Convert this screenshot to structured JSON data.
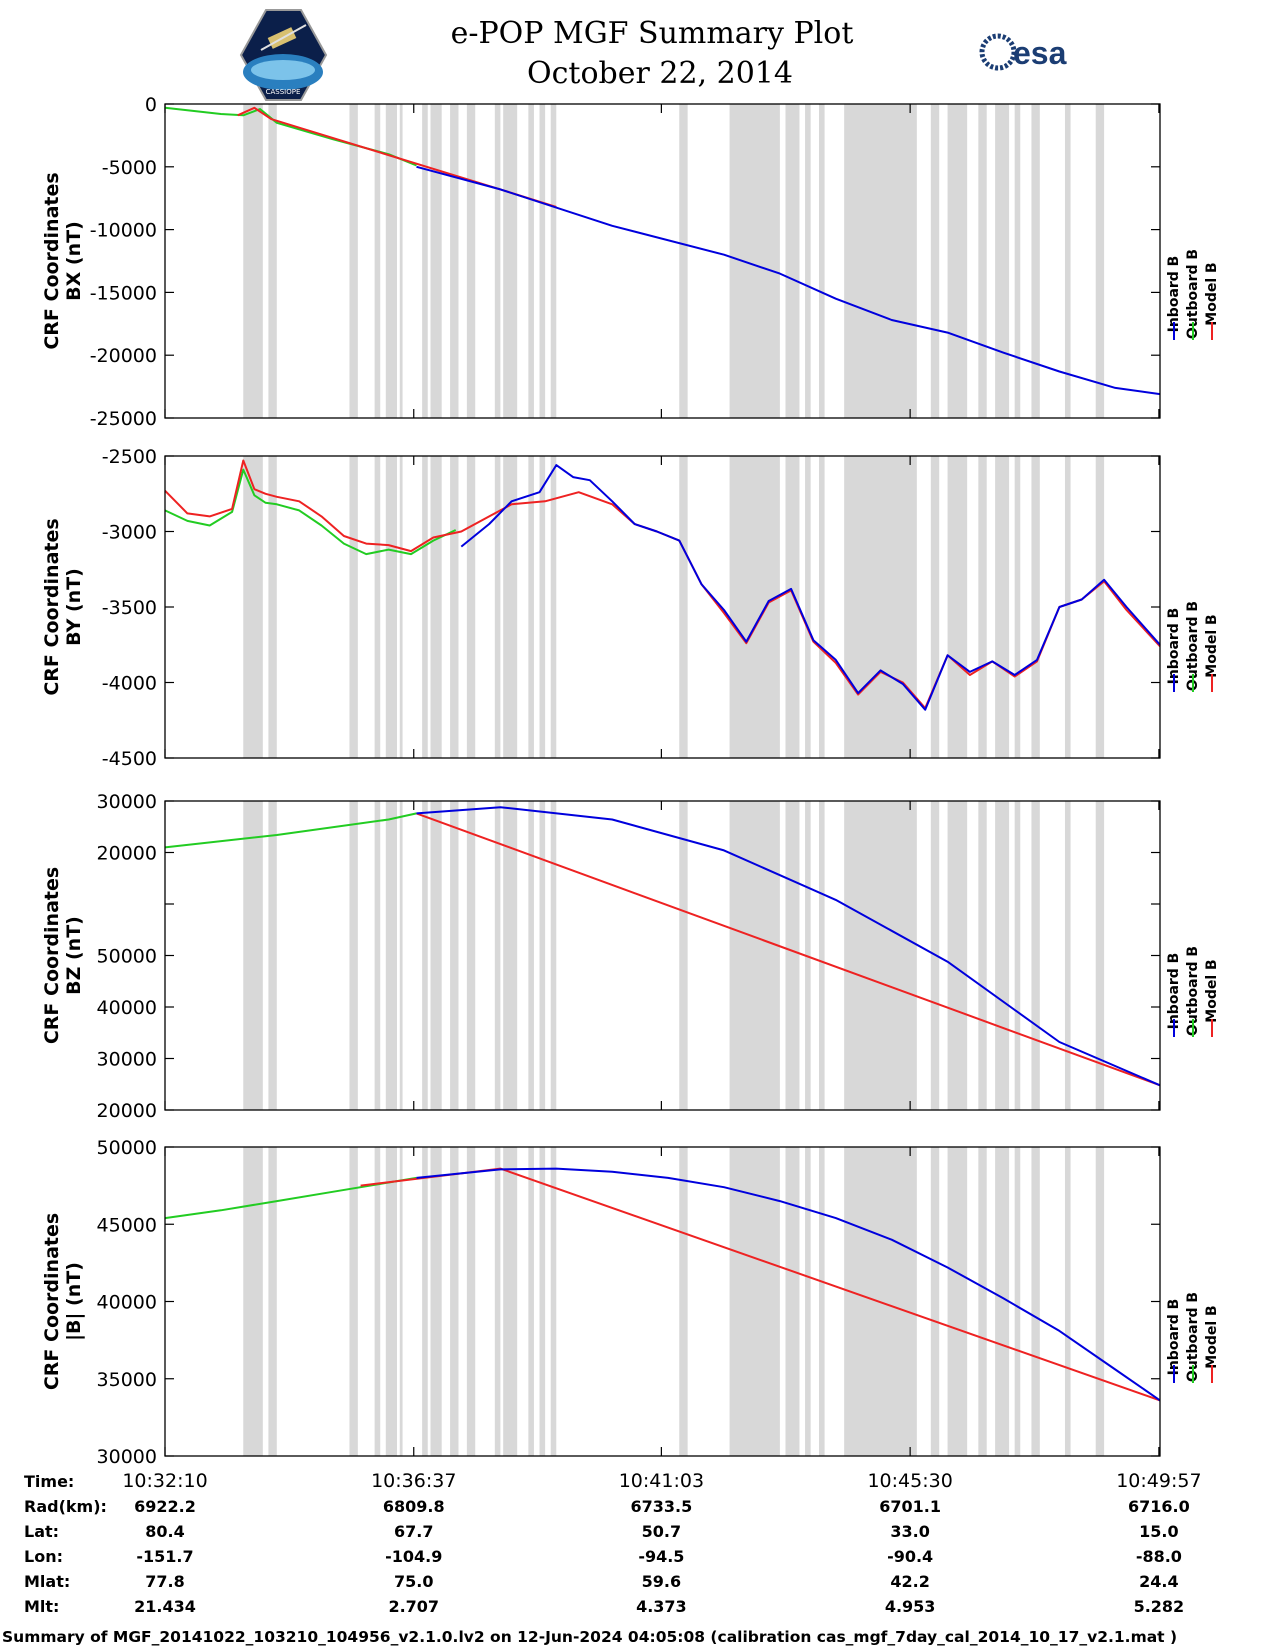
{
  "title": {
    "line1": "e-POP MGF Summary Plot",
    "line2": "October 22, 2014"
  },
  "logos": {
    "left": "cassiope-mission-patch",
    "right": "esa"
  },
  "logo_text": {
    "esa": "esa",
    "patch": "CASSIOPE"
  },
  "colors": {
    "inboard": "#0000dd",
    "outboard": "#22cc22",
    "model": "#ee2222",
    "shade": "#d8d8d8",
    "axis": "#000000"
  },
  "legend": [
    {
      "label": "Inboard B",
      "color": "#0000dd"
    },
    {
      "label": "Outboard B",
      "color": "#22cc22"
    },
    {
      "label": "Model B",
      "color": "#ee2222"
    }
  ],
  "chart_data": [
    {
      "type": "line",
      "id": "bx",
      "ylabel_line1": "CRF Coordinates",
      "ylabel_line2": "BX (nT)",
      "ylim": [
        -25000,
        0
      ],
      "yticks": [
        0,
        -5000,
        -10000,
        -15000,
        -20000,
        -25000
      ],
      "ytick_labels": [
        "0",
        "-5000",
        "-10000",
        "-15000",
        "-20000",
        "-25000"
      ],
      "x_minutes": [
        0,
        2,
        3,
        4,
        5,
        6,
        8,
        10,
        12,
        14,
        16,
        17.5
      ],
      "series": [
        {
          "name": "Inboard B",
          "x": [
            4.5,
            6,
            8,
            10,
            11,
            12,
            13,
            14,
            15,
            16,
            17,
            17.8
          ],
          "values": [
            -5000,
            -6800,
            -9700,
            -12000,
            -13500,
            -15500,
            -17200,
            -18200,
            -19800,
            -21300,
            -22600,
            -23100
          ]
        },
        {
          "name": "Outboard B",
          "x": [
            0,
            1,
            1.4,
            1.7,
            2,
            3,
            4,
            4.5
          ],
          "values": [
            -300,
            -800,
            -900,
            -400,
            -1500,
            -2800,
            -4000,
            -4900
          ]
        },
        {
          "name": "Model B",
          "x": [
            1.3,
            1.6,
            1.9,
            6,
            7
          ],
          "values": [
            -900,
            -300,
            -1200,
            -6800,
            -8200
          ]
        }
      ]
    },
    {
      "type": "line",
      "id": "by",
      "ylabel_line1": "CRF Coordinates",
      "ylabel_line2": "BY (nT)",
      "ylim": [
        -4500,
        -2500
      ],
      "yticks": [
        -2500,
        -3000,
        -3500,
        -4000,
        -4500
      ],
      "ytick_labels": [
        "-2500",
        "-3000",
        "-3500",
        "-4000",
        "-4500"
      ],
      "series": [
        {
          "name": "Inboard B",
          "x": [
            5.3,
            5.8,
            6.2,
            6.7,
            7.0,
            7.3,
            7.6,
            8.0,
            8.4,
            8.8,
            9.2,
            9.6,
            10.0,
            10.4,
            10.8,
            11.2,
            11.6,
            12.0,
            12.4,
            12.8,
            13.2,
            13.6,
            14.0,
            14.4,
            14.8,
            15.2,
            15.6,
            16.0,
            16.4,
            16.8,
            17.2,
            17.8
          ],
          "values": [
            -3100,
            -2950,
            -2800,
            -2740,
            -2560,
            -2640,
            -2660,
            -2800,
            -2950,
            -3000,
            -3060,
            -3350,
            -3520,
            -3730,
            -3460,
            -3380,
            -3720,
            -3850,
            -4070,
            -3920,
            -4010,
            -4180,
            -3820,
            -3930,
            -3860,
            -3950,
            -3850,
            -3500,
            -3450,
            -3320,
            -3500,
            -3750
          ]
        },
        {
          "name": "Outboard B",
          "x": [
            0,
            0.4,
            0.8,
            1.2,
            1.4,
            1.6,
            1.8,
            2.0,
            2.4,
            2.8,
            3.2,
            3.6,
            4.0,
            4.4,
            4.8,
            5.2
          ],
          "values": [
            -2860,
            -2930,
            -2960,
            -2870,
            -2590,
            -2760,
            -2810,
            -2820,
            -2860,
            -2960,
            -3080,
            -3150,
            -3120,
            -3150,
            -3060,
            -2990
          ]
        },
        {
          "name": "Model B",
          "x": [
            0,
            0.4,
            0.8,
            1.2,
            1.4,
            1.6,
            1.8,
            2.0,
            2.4,
            2.8,
            3.2,
            3.6,
            4.0,
            4.4,
            4.8,
            5.3,
            5.8,
            6.2,
            6.8,
            7.4,
            8.0,
            8.4,
            8.8,
            9.2,
            9.6,
            10.0,
            10.4,
            10.8,
            11.2,
            11.6,
            12.0,
            12.4,
            12.8,
            13.2,
            13.6,
            14.0,
            14.4,
            14.8,
            15.2,
            15.6,
            16.0,
            16.4,
            16.8,
            17.2,
            17.8
          ],
          "values": [
            -2730,
            -2880,
            -2900,
            -2850,
            -2530,
            -2720,
            -2750,
            -2770,
            -2800,
            -2900,
            -3030,
            -3080,
            -3090,
            -3130,
            -3040,
            -3000,
            -2900,
            -2820,
            -2800,
            -2740,
            -2820,
            -2950,
            -3000,
            -3060,
            -3350,
            -3540,
            -3740,
            -3470,
            -3390,
            -3730,
            -3870,
            -4080,
            -3930,
            -4000,
            -4170,
            -3820,
            -3950,
            -3860,
            -3960,
            -3860,
            -3500,
            -3450,
            -3330,
            -3520,
            -3760
          ]
        }
      ]
    },
    {
      "type": "line",
      "id": "bz",
      "ylabel_line1": "CRF Coordinates",
      "ylabel_line2": "BZ (nT)",
      "yticks_value_order": "top to bottom",
      "ytick_labels": [
        "30000",
        "20000",
        "",
        "50000",
        "40000",
        "30000",
        "20000"
      ],
      "series": [
        {
          "name": "Inboard B",
          "shape": "descending from apex near 10:38 toward lower right",
          "x": [
            4.5,
            6,
            8,
            10,
            12,
            14,
            16,
            17.8
          ],
          "values": [
            0.96,
            0.98,
            0.94,
            0.84,
            0.68,
            0.48,
            0.22,
            0.08
          ]
        },
        {
          "name": "Outboard B",
          "x": [
            0,
            2,
            4,
            4.5
          ],
          "values": [
            0.85,
            0.89,
            0.94,
            0.96
          ]
        },
        {
          "name": "Model B",
          "x": [
            4.5,
            17.8
          ],
          "values": [
            0.96,
            0.08
          ]
        }
      ]
    },
    {
      "type": "line",
      "id": "bmag",
      "ylabel_line1": "CRF Coordinates",
      "ylabel_line2": "|B| (nT)",
      "ylim": [
        30000,
        50000
      ],
      "yticks": [
        50000,
        45000,
        40000,
        35000,
        30000
      ],
      "ytick_labels": [
        "50000",
        "45000",
        "40000",
        "35000",
        "30000"
      ],
      "series": [
        {
          "name": "Inboard B",
          "x": [
            4.5,
            6,
            7,
            8,
            9,
            10,
            11,
            12,
            13,
            14,
            15,
            16,
            17,
            17.8
          ],
          "values": [
            48000,
            48550,
            48600,
            48400,
            48000,
            47400,
            46500,
            45400,
            44000,
            42200,
            40200,
            38100,
            35600,
            33600
          ]
        },
        {
          "name": "Outboard B",
          "x": [
            0,
            1,
            2,
            3,
            4,
            4.5
          ],
          "values": [
            45400,
            45900,
            46500,
            47100,
            47700,
            48000
          ]
        },
        {
          "name": "Model B",
          "x": [
            3.5,
            6,
            17.8
          ],
          "values": [
            47500,
            48600,
            33600
          ]
        }
      ]
    }
  ],
  "x_axis": {
    "ticks": [
      "10:32:10",
      "10:36:37",
      "10:41:03",
      "10:45:30",
      "10:49:57"
    ],
    "tick_minutes": [
      0,
      4.45,
      8.88,
      13.33,
      17.78
    ],
    "range_minutes": [
      0,
      17.8
    ],
    "shade_bands_minutes": [
      [
        1.4,
        1.75
      ],
      [
        1.85,
        2.0
      ],
      [
        3.3,
        3.45
      ],
      [
        3.75,
        3.85
      ],
      [
        3.95,
        4.15
      ],
      [
        4.2,
        4.25
      ],
      [
        4.6,
        4.7
      ],
      [
        4.75,
        4.95
      ],
      [
        5.1,
        5.25
      ],
      [
        5.4,
        5.55
      ],
      [
        5.9,
        6.0
      ],
      [
        6.05,
        6.3
      ],
      [
        6.5,
        6.6
      ],
      [
        6.7,
        6.8
      ],
      [
        6.9,
        7.0
      ],
      [
        9.2,
        9.35
      ],
      [
        10.1,
        11.0
      ],
      [
        11.1,
        11.35
      ],
      [
        11.45,
        11.55
      ],
      [
        11.7,
        11.8
      ],
      [
        12.15,
        13.45
      ],
      [
        13.7,
        13.85
      ],
      [
        14.0,
        14.35
      ],
      [
        14.55,
        14.7
      ],
      [
        14.85,
        15.1
      ],
      [
        15.2,
        15.3
      ],
      [
        15.5,
        15.65
      ],
      [
        16.1,
        16.2
      ],
      [
        16.65,
        16.8
      ]
    ]
  },
  "orbit_table": {
    "row_labels": [
      "Time:",
      "Rad(km):",
      "Lat:",
      "Lon:",
      "Mlat:",
      "Mlt:"
    ],
    "columns": [
      {
        "Time": "10:32:10",
        "Rad": "6922.2",
        "Lat": "80.4",
        "Lon": "-151.7",
        "Mlat": "77.8",
        "Mlt": "21.434"
      },
      {
        "Time": "10:36:37",
        "Rad": "6809.8",
        "Lat": "67.7",
        "Lon": "-104.9",
        "Mlat": "75.0",
        "Mlt": "2.707"
      },
      {
        "Time": "10:41:03",
        "Rad": "6733.5",
        "Lat": "50.7",
        "Lon": "-94.5",
        "Mlat": "59.6",
        "Mlt": "4.373"
      },
      {
        "Time": "10:45:30",
        "Rad": "6701.1",
        "Lat": "33.0",
        "Lon": "-90.4",
        "Mlat": "42.2",
        "Mlt": "4.953"
      },
      {
        "Time": "10:49:57",
        "Rad": "6716.0",
        "Lat": "15.0",
        "Lon": "-88.0",
        "Mlat": "24.4",
        "Mlt": "5.282"
      }
    ]
  },
  "footer": "Summary of MGF_20141022_103210_104956_v2.1.0.lv2 on 12-Jun-2024 04:05:08 (calibration cas_mgf_7day_cal_2014_10_17_v2.1.mat )"
}
